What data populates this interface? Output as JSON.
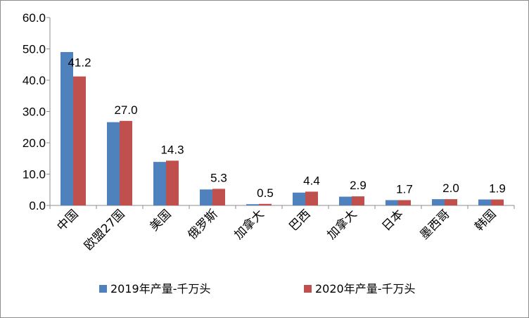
{
  "chart_data": {
    "type": "bar",
    "categories": [
      "中国",
      "欧盟27国",
      "美国",
      "俄罗斯",
      "加拿大",
      "巴西",
      "加拿大",
      "日本",
      "墨西哥",
      "韩国"
    ],
    "series": [
      {
        "name": "2019年产量-千万头",
        "color": "#4f81bd",
        "values": [
          49.0,
          26.6,
          13.9,
          5.1,
          0.4,
          4.1,
          2.8,
          1.7,
          2.0,
          1.9
        ]
      },
      {
        "name": "2020年产量-千万头",
        "color": "#c0504d",
        "values": [
          41.2,
          27.0,
          14.3,
          5.3,
          0.5,
          4.4,
          2.9,
          1.7,
          2.0,
          1.9
        ]
      }
    ],
    "data_labels": [
      "41.2",
      "27.0",
      "14.3",
      "5.3",
      "0.5",
      "4.4",
      "2.9",
      "1.7",
      "2.0",
      "1.9"
    ],
    "yticks": [
      "0.0",
      "10.0",
      "20.0",
      "30.0",
      "40.0",
      "50.0",
      "60.0"
    ],
    "ylim": [
      0,
      60
    ],
    "grid": false,
    "legend_position": "bottom"
  }
}
